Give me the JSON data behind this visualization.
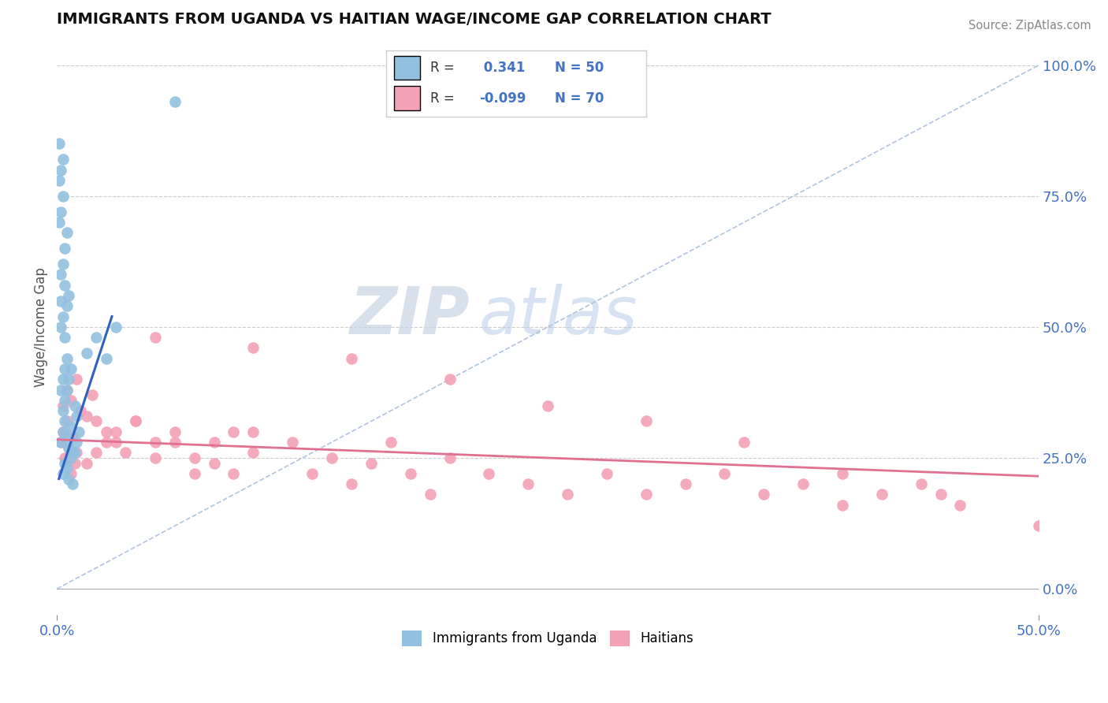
{
  "title": "IMMIGRANTS FROM UGANDA VS HAITIAN WAGE/INCOME GAP CORRELATION CHART",
  "source": "Source: ZipAtlas.com",
  "ylabel": "Wage/Income Gap",
  "xlim": [
    0.0,
    0.5
  ],
  "ylim": [
    -0.05,
    1.05
  ],
  "uganda_R": 0.341,
  "uganda_N": 50,
  "haitian_R": -0.099,
  "haitian_N": 70,
  "uganda_color": "#92c0e0",
  "haitian_color": "#f4a0b5",
  "uganda_line_color": "#3060c0",
  "haitian_line_color": "#e07090",
  "watermark_zip": "ZIP",
  "watermark_atlas": "atlas",
  "background_color": "#ffffff",
  "tick_color": "#4472c4",
  "uganda_scatter_x": [
    0.002,
    0.003,
    0.004,
    0.005,
    0.006,
    0.007,
    0.008,
    0.009,
    0.01,
    0.003,
    0.004,
    0.005,
    0.006,
    0.007,
    0.008,
    0.009,
    0.01,
    0.011,
    0.002,
    0.003,
    0.004,
    0.005,
    0.003,
    0.004,
    0.005,
    0.006,
    0.007,
    0.002,
    0.003,
    0.004,
    0.005,
    0.006,
    0.002,
    0.003,
    0.004,
    0.005,
    0.001,
    0.002,
    0.003,
    0.001,
    0.002,
    0.003,
    0.004,
    0.001,
    0.002,
    0.015,
    0.02,
    0.025,
    0.03,
    0.06
  ],
  "uganda_scatter_y": [
    0.28,
    0.3,
    0.32,
    0.29,
    0.27,
    0.31,
    0.26,
    0.35,
    0.33,
    0.22,
    0.24,
    0.23,
    0.21,
    0.25,
    0.2,
    0.26,
    0.28,
    0.3,
    0.38,
    0.4,
    0.42,
    0.44,
    0.34,
    0.36,
    0.38,
    0.4,
    0.42,
    0.5,
    0.52,
    0.48,
    0.54,
    0.56,
    0.6,
    0.62,
    0.65,
    0.68,
    0.7,
    0.72,
    0.75,
    0.78,
    0.8,
    0.82,
    0.58,
    0.85,
    0.55,
    0.45,
    0.48,
    0.44,
    0.5,
    0.93
  ],
  "haitian_scatter_x": [
    0.002,
    0.003,
    0.004,
    0.005,
    0.006,
    0.007,
    0.008,
    0.009,
    0.01,
    0.003,
    0.005,
    0.007,
    0.01,
    0.012,
    0.015,
    0.018,
    0.02,
    0.025,
    0.03,
    0.035,
    0.04,
    0.05,
    0.06,
    0.07,
    0.08,
    0.09,
    0.1,
    0.015,
    0.02,
    0.025,
    0.03,
    0.04,
    0.05,
    0.06,
    0.07,
    0.08,
    0.09,
    0.1,
    0.12,
    0.13,
    0.14,
    0.15,
    0.16,
    0.17,
    0.18,
    0.19,
    0.2,
    0.22,
    0.24,
    0.26,
    0.28,
    0.3,
    0.32,
    0.34,
    0.36,
    0.38,
    0.4,
    0.42,
    0.44,
    0.46,
    0.05,
    0.1,
    0.15,
    0.2,
    0.25,
    0.3,
    0.35,
    0.4,
    0.45,
    0.5
  ],
  "haitian_scatter_y": [
    0.28,
    0.3,
    0.25,
    0.32,
    0.27,
    0.22,
    0.29,
    0.24,
    0.26,
    0.35,
    0.38,
    0.36,
    0.4,
    0.34,
    0.33,
    0.37,
    0.32,
    0.3,
    0.28,
    0.26,
    0.32,
    0.28,
    0.3,
    0.25,
    0.28,
    0.22,
    0.3,
    0.24,
    0.26,
    0.28,
    0.3,
    0.32,
    0.25,
    0.28,
    0.22,
    0.24,
    0.3,
    0.26,
    0.28,
    0.22,
    0.25,
    0.2,
    0.24,
    0.28,
    0.22,
    0.18,
    0.25,
    0.22,
    0.2,
    0.18,
    0.22,
    0.18,
    0.2,
    0.22,
    0.18,
    0.2,
    0.16,
    0.18,
    0.2,
    0.16,
    0.48,
    0.46,
    0.44,
    0.4,
    0.35,
    0.32,
    0.28,
    0.22,
    0.18,
    0.12
  ],
  "diag_line_x": [
    0.0,
    0.5
  ],
  "diag_line_y": [
    0.0,
    1.0
  ],
  "uganda_trend_x0": 0.001,
  "uganda_trend_x1": 0.028,
  "uganda_trend_y0": 0.21,
  "uganda_trend_y1": 0.52,
  "haitian_trend_x0": 0.0,
  "haitian_trend_x1": 0.5,
  "haitian_trend_y0": 0.285,
  "haitian_trend_y1": 0.215
}
